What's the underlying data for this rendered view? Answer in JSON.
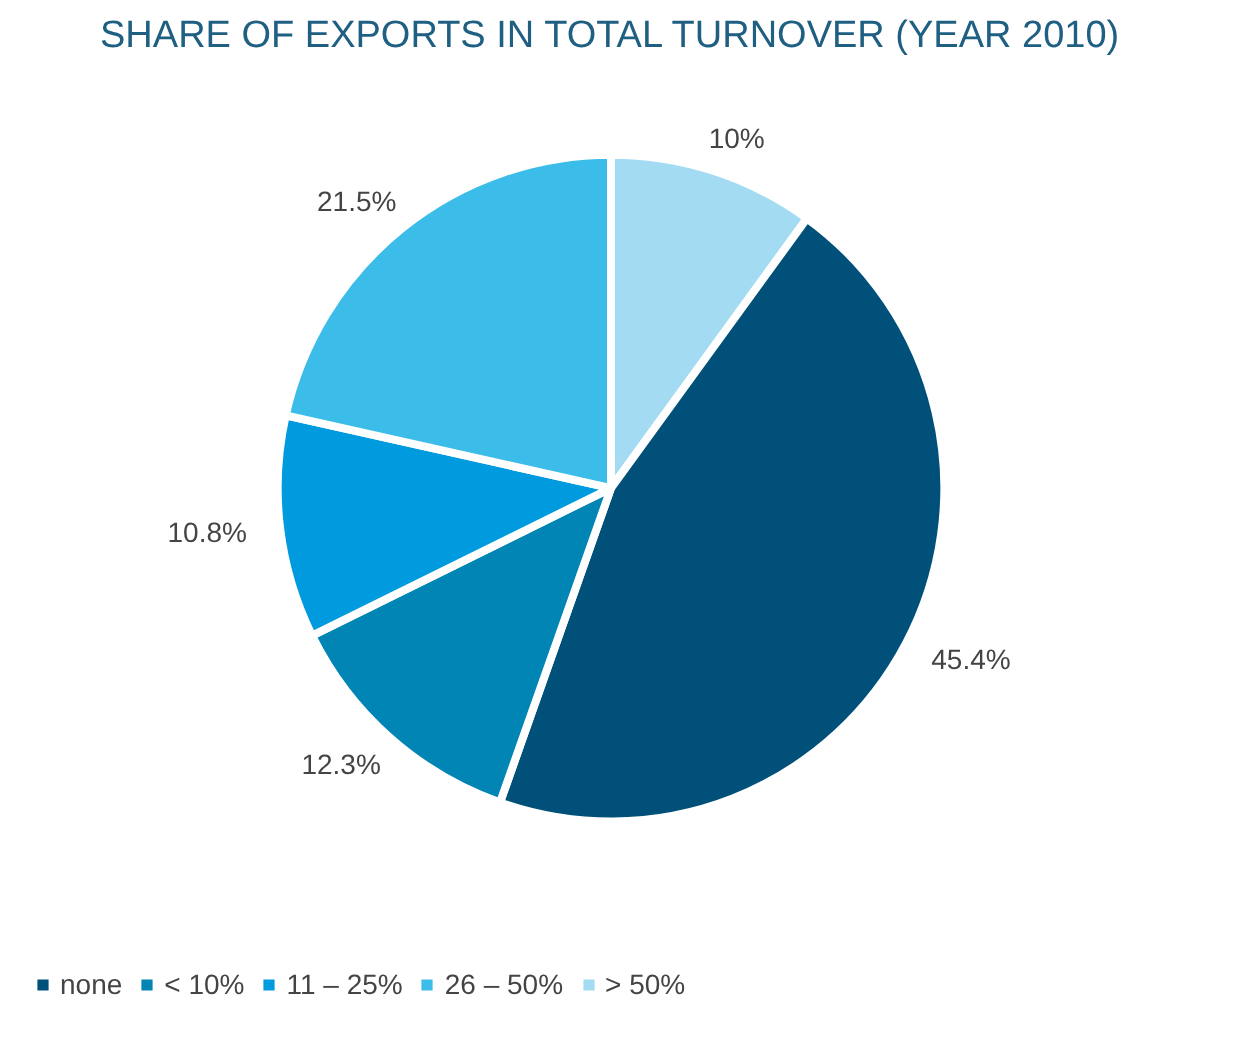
{
  "chart_data": {
    "type": "pie",
    "title": "SHARE OF EXPORTS IN TOTAL TURNOVER (YEAR 2010)",
    "categories": [
      "none",
      "< 10%",
      "11 – 25%",
      "26 – 50%",
      "> 50%"
    ],
    "values": [
      45.4,
      12.3,
      10.8,
      21.5,
      10
    ],
    "colors": [
      "#00507a",
      "#0085b5",
      "#009bde",
      "#3cbde9",
      "#a3dbf3"
    ],
    "value_labels": [
      "45.4%",
      "12.3%",
      "10.8%",
      "21.5%",
      "10%"
    ],
    "legend": "bottom left"
  }
}
